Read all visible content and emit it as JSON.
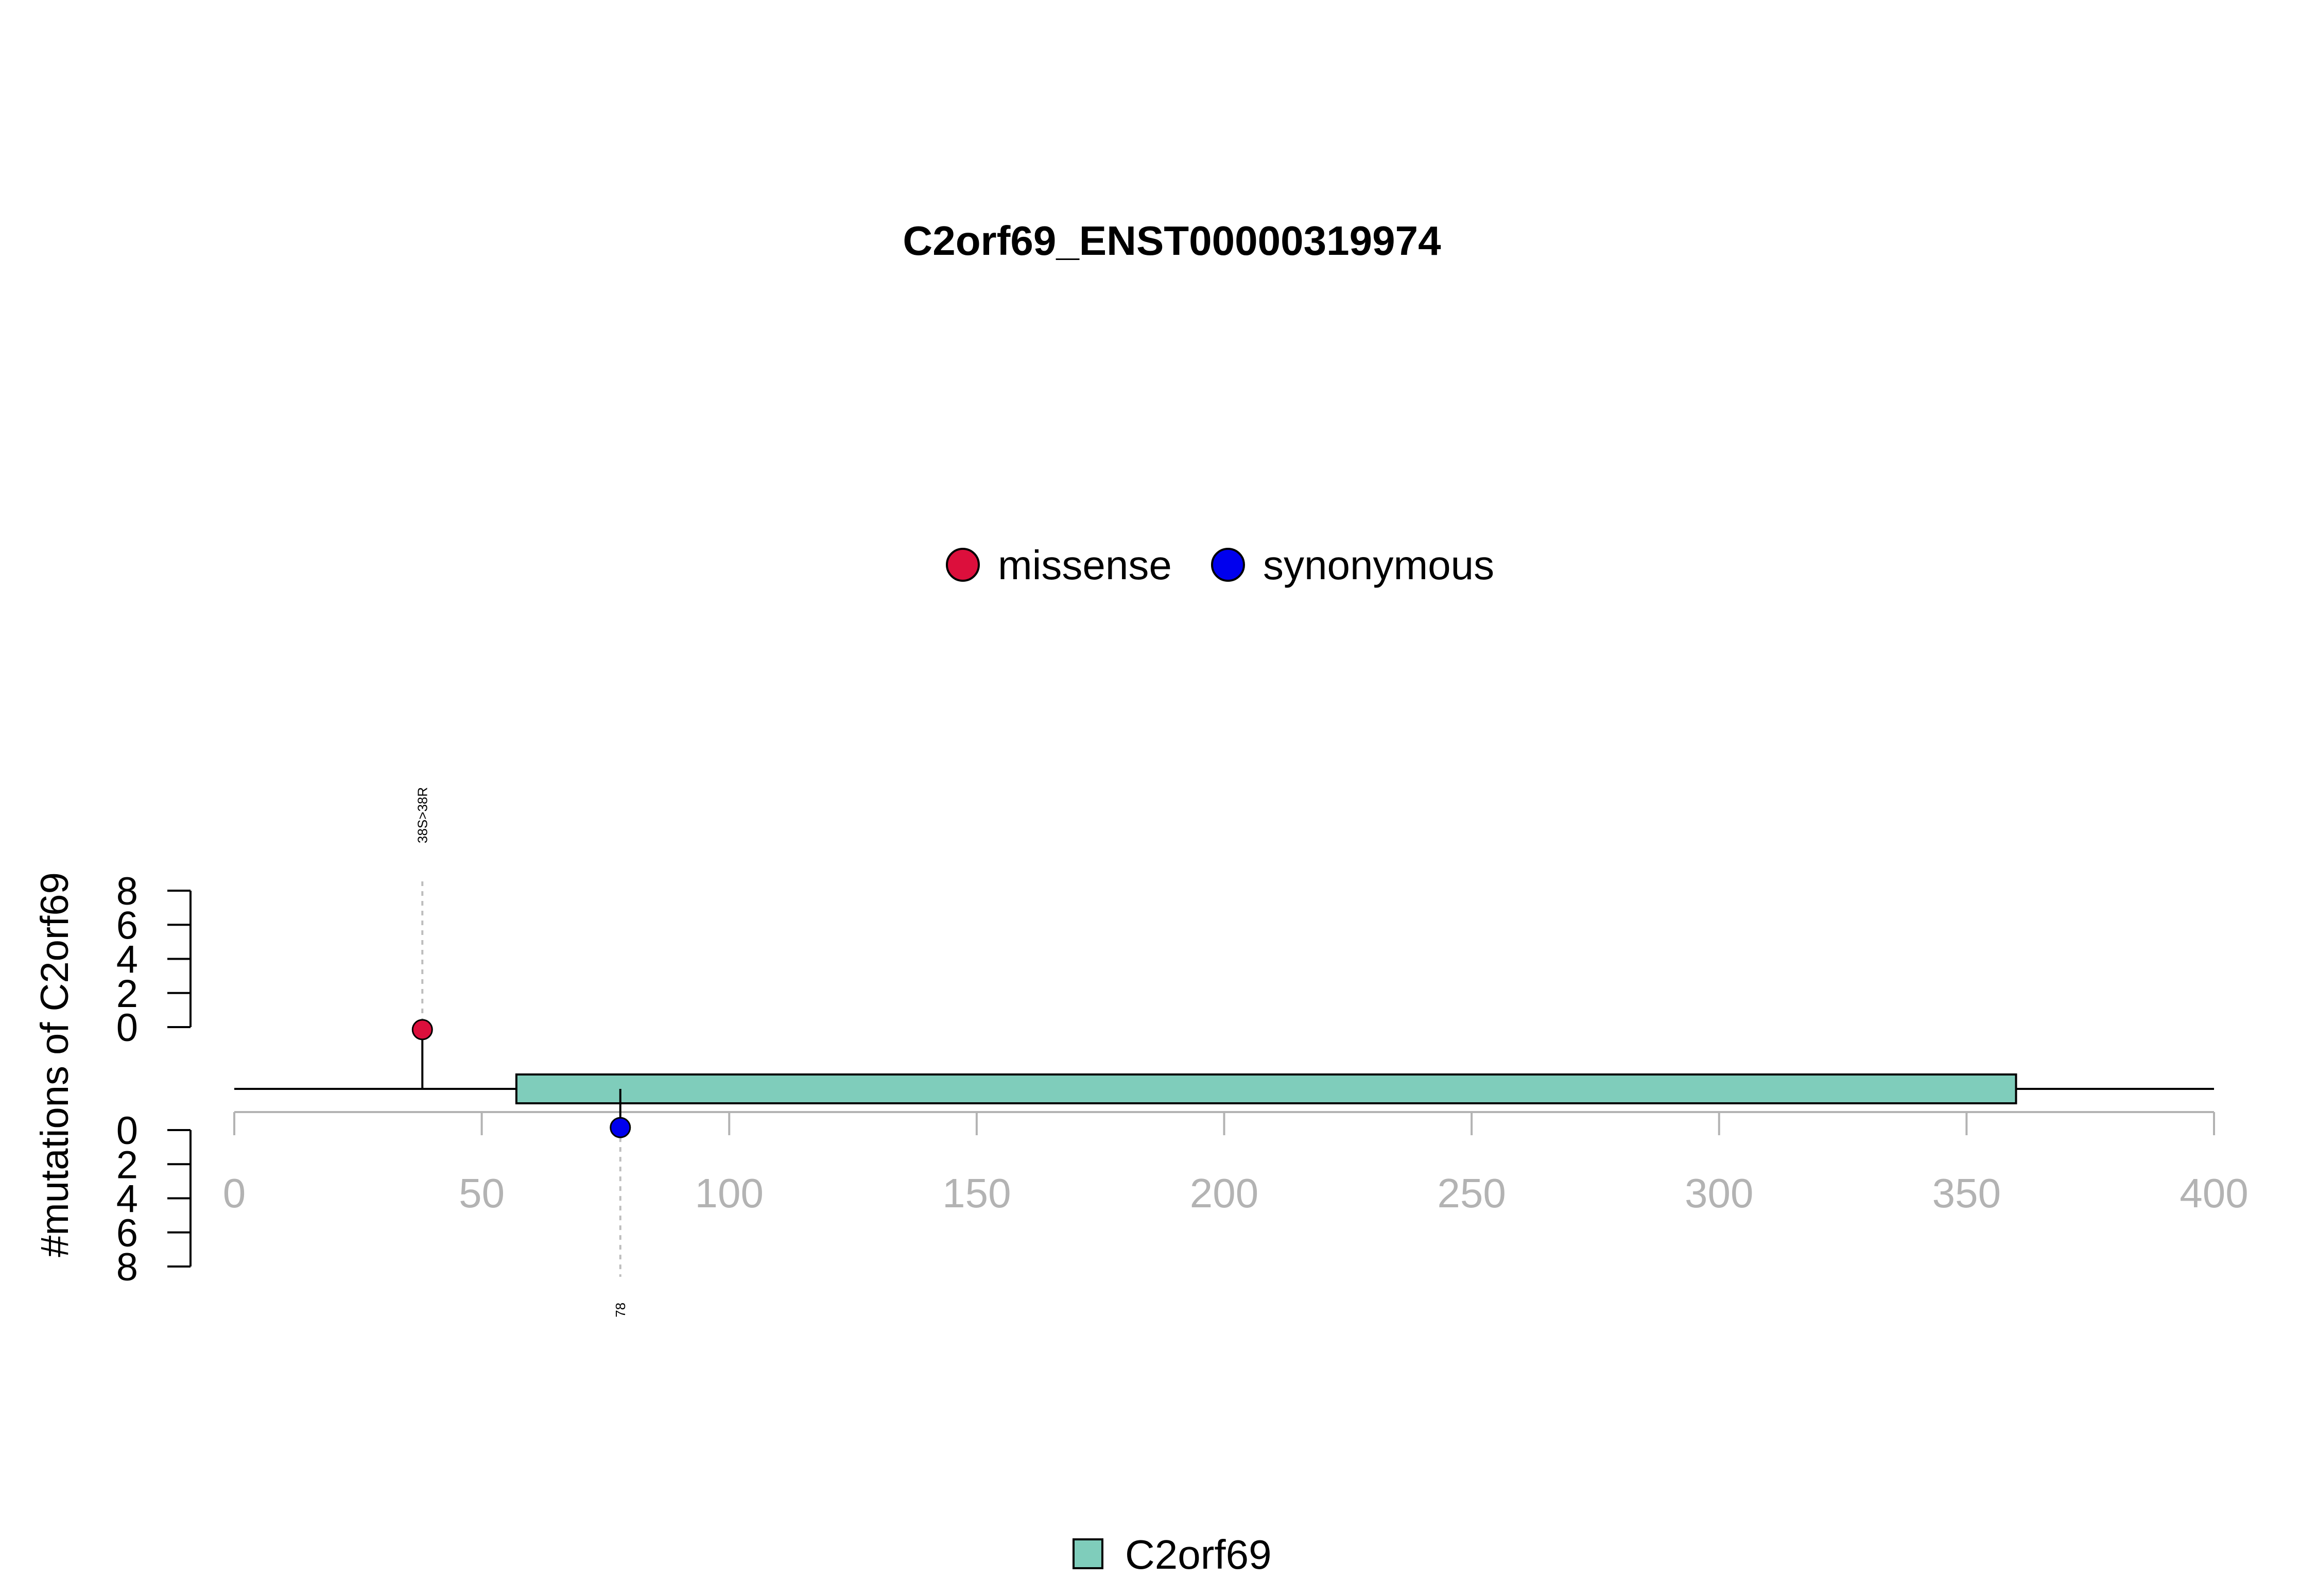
{
  "chart_data": {
    "type": "lollipop",
    "title": "C2orf69_ENST00000319974",
    "ylabel": "#mutations of C2orf69",
    "x_ticks": [
      0,
      50,
      100,
      150,
      200,
      250,
      300,
      350,
      400
    ],
    "xlim": [
      0,
      400
    ],
    "y_ticks_upper": [
      0,
      2,
      4,
      6,
      8
    ],
    "y_ticks_lower": [
      0,
      2,
      4,
      6,
      8
    ],
    "ylim": [
      0,
      8
    ],
    "protein_length": 400,
    "mutation_types": [
      {
        "name": "missense",
        "color": "#dc0f3c"
      },
      {
        "name": "synonymous",
        "color": "#0000ee"
      }
    ],
    "mutations": [
      {
        "position": 38,
        "count": 1,
        "type": "missense",
        "label": "38S>38R",
        "side": "top"
      },
      {
        "position": 78,
        "count": 1,
        "type": "synonymous",
        "label": "78",
        "side": "bottom"
      }
    ],
    "domains": [
      {
        "name": "C2orf69",
        "start": 57,
        "end": 360,
        "color": "#7fcdbb"
      }
    ]
  }
}
